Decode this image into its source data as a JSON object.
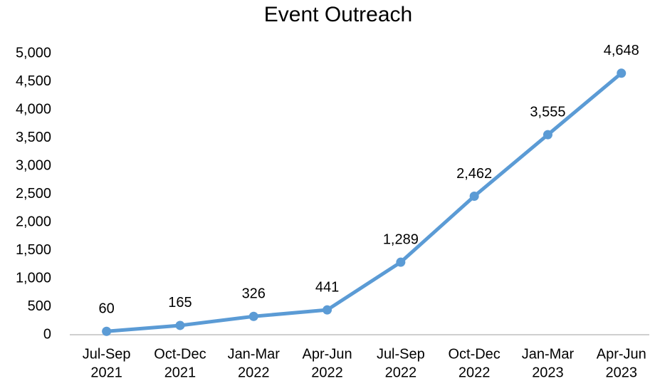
{
  "chart_data": {
    "type": "line",
    "title": "Event Outreach",
    "categories": [
      [
        "Jul-Sep",
        "2021"
      ],
      [
        "Oct-Dec",
        "2021"
      ],
      [
        "Jan-Mar",
        "2022"
      ],
      [
        "Apr-Jun",
        "2022"
      ],
      [
        "Jul-Sep",
        "2022"
      ],
      [
        "Oct-Dec",
        "2022"
      ],
      [
        "Jan-Mar",
        "2023"
      ],
      [
        "Apr-Jun",
        "2023"
      ]
    ],
    "values": [
      60,
      165,
      326,
      441,
      1289,
      2462,
      3555,
      4648
    ],
    "value_labels": [
      "60",
      "165",
      "326",
      "441",
      "1,289",
      "2,462",
      "3,555",
      "4,648"
    ],
    "color": "#5b9bd5",
    "ylim": [
      0,
      5000
    ],
    "yticks": [
      0,
      500,
      {
        "value": 1000,
        "label": "1,000"
      },
      {
        "value": 1500,
        "label": "1,500"
      },
      {
        "value": 2000,
        "label": "2,000"
      },
      {
        "value": 2500,
        "label": "2,500"
      },
      {
        "value": 3000,
        "label": "3,000"
      },
      {
        "value": 3500,
        "label": "3,500"
      },
      {
        "value": 4000,
        "label": "4,000"
      },
      {
        "value": 4500,
        "label": "4,500"
      },
      {
        "value": 5000,
        "label": "5,000"
      }
    ],
    "grid": false
  }
}
